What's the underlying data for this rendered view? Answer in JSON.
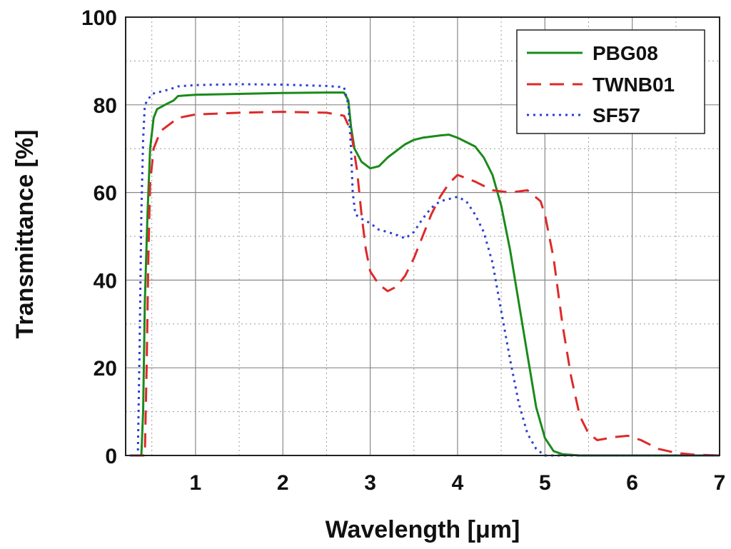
{
  "chart_data": {
    "type": "line",
    "title": "",
    "xlabel": "Wavelength [μm]",
    "ylabel": "Transmittance [%]",
    "xlim": [
      0.2,
      7
    ],
    "ylim": [
      0,
      100
    ],
    "xticks": [
      1,
      2,
      3,
      4,
      5,
      6,
      7
    ],
    "yticks": [
      0,
      20,
      40,
      60,
      80,
      100
    ],
    "x_minor_step": 0.5,
    "y_minor_step": 10,
    "grid": true,
    "legend_position": "top-right",
    "series": [
      {
        "name": "PBG08",
        "color": "#1a8a1a",
        "style": "solid",
        "points": [
          [
            0.25,
            0
          ],
          [
            0.38,
            0
          ],
          [
            0.4,
            10
          ],
          [
            0.42,
            35
          ],
          [
            0.45,
            55
          ],
          [
            0.48,
            70
          ],
          [
            0.52,
            77
          ],
          [
            0.56,
            79
          ],
          [
            0.65,
            80
          ],
          [
            0.75,
            81
          ],
          [
            0.8,
            82
          ],
          [
            1.0,
            82.3
          ],
          [
            1.5,
            82.5
          ],
          [
            2.0,
            82.7
          ],
          [
            2.5,
            82.8
          ],
          [
            2.7,
            82.8
          ],
          [
            2.75,
            81
          ],
          [
            2.78,
            75
          ],
          [
            2.82,
            70
          ],
          [
            2.9,
            67
          ],
          [
            3.0,
            65.5
          ],
          [
            3.1,
            66
          ],
          [
            3.2,
            68
          ],
          [
            3.3,
            69.5
          ],
          [
            3.4,
            71
          ],
          [
            3.5,
            72
          ],
          [
            3.6,
            72.5
          ],
          [
            3.8,
            73
          ],
          [
            3.9,
            73.2
          ],
          [
            4.0,
            72.5
          ],
          [
            4.1,
            71.5
          ],
          [
            4.2,
            70.5
          ],
          [
            4.3,
            68
          ],
          [
            4.4,
            64
          ],
          [
            4.5,
            57
          ],
          [
            4.6,
            47
          ],
          [
            4.7,
            35
          ],
          [
            4.8,
            23
          ],
          [
            4.9,
            11
          ],
          [
            5.0,
            4
          ],
          [
            5.1,
            1
          ],
          [
            5.2,
            0.3
          ],
          [
            5.4,
            0
          ],
          [
            7.0,
            0
          ]
        ]
      },
      {
        "name": "TWNB01",
        "color": "#dd2a2a",
        "style": "dashed",
        "points": [
          [
            0.25,
            0
          ],
          [
            0.42,
            0
          ],
          [
            0.44,
            20
          ],
          [
            0.46,
            45
          ],
          [
            0.48,
            62
          ],
          [
            0.52,
            70
          ],
          [
            0.6,
            74
          ],
          [
            0.8,
            77
          ],
          [
            1.0,
            77.8
          ],
          [
            1.5,
            78.2
          ],
          [
            2.0,
            78.4
          ],
          [
            2.5,
            78.2
          ],
          [
            2.7,
            77.5
          ],
          [
            2.78,
            74
          ],
          [
            2.85,
            65
          ],
          [
            2.9,
            55
          ],
          [
            2.95,
            47
          ],
          [
            3.0,
            42
          ],
          [
            3.1,
            39
          ],
          [
            3.2,
            37.5
          ],
          [
            3.3,
            38.5
          ],
          [
            3.4,
            41
          ],
          [
            3.5,
            45
          ],
          [
            3.6,
            50
          ],
          [
            3.7,
            55
          ],
          [
            3.8,
            59
          ],
          [
            3.9,
            62
          ],
          [
            4.0,
            64
          ],
          [
            4.2,
            62.5
          ],
          [
            4.4,
            60.5
          ],
          [
            4.6,
            60
          ],
          [
            4.8,
            60.5
          ],
          [
            4.95,
            58
          ],
          [
            5.0,
            55
          ],
          [
            5.1,
            45
          ],
          [
            5.2,
            30
          ],
          [
            5.3,
            18
          ],
          [
            5.4,
            9
          ],
          [
            5.5,
            5
          ],
          [
            5.6,
            3.5
          ],
          [
            5.8,
            4.2
          ],
          [
            5.95,
            4.5
          ],
          [
            6.1,
            3.5
          ],
          [
            6.3,
            1.5
          ],
          [
            6.5,
            0.6
          ],
          [
            6.7,
            0.2
          ],
          [
            7.0,
            0
          ]
        ]
      },
      {
        "name": "SF57",
        "color": "#2b3fcf",
        "style": "dotted",
        "points": [
          [
            0.25,
            0
          ],
          [
            0.34,
            0
          ],
          [
            0.36,
            25
          ],
          [
            0.38,
            55
          ],
          [
            0.4,
            72
          ],
          [
            0.42,
            80
          ],
          [
            0.5,
            82.5
          ],
          [
            0.7,
            83.5
          ],
          [
            0.8,
            84.2
          ],
          [
            1.0,
            84.5
          ],
          [
            1.5,
            84.7
          ],
          [
            2.0,
            84.6
          ],
          [
            2.5,
            84.3
          ],
          [
            2.7,
            84
          ],
          [
            2.75,
            80
          ],
          [
            2.78,
            70
          ],
          [
            2.8,
            60
          ],
          [
            2.83,
            55
          ],
          [
            2.9,
            54
          ],
          [
            3.0,
            53
          ],
          [
            3.1,
            51.5
          ],
          [
            3.2,
            51
          ],
          [
            3.35,
            50
          ],
          [
            3.4,
            49.5
          ],
          [
            3.5,
            51
          ],
          [
            3.6,
            54
          ],
          [
            3.7,
            56.5
          ],
          [
            3.8,
            58
          ],
          [
            3.9,
            58.5
          ],
          [
            4.0,
            59
          ],
          [
            4.1,
            58
          ],
          [
            4.2,
            55
          ],
          [
            4.3,
            51
          ],
          [
            4.4,
            44
          ],
          [
            4.5,
            33
          ],
          [
            4.6,
            22
          ],
          [
            4.7,
            12
          ],
          [
            4.8,
            5
          ],
          [
            4.9,
            1.5
          ],
          [
            5.0,
            0
          ],
          [
            7.0,
            0
          ]
        ]
      }
    ]
  }
}
